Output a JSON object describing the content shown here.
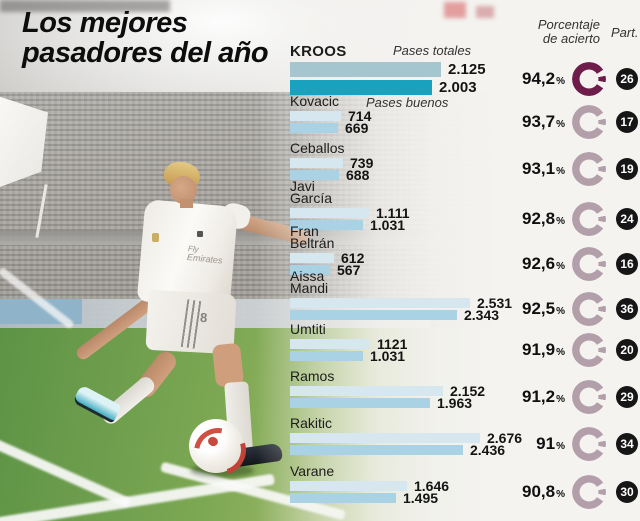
{
  "title": "Los mejores\npasadores del año",
  "labels": {
    "pases_totales": "Pases totales",
    "pases_buenos": "Pases buenos",
    "porcentaje_1": "Porcentaje",
    "porcentaje_2": "de acierto",
    "part": "Part.",
    "percent_sign": "%"
  },
  "colors": {
    "bar_total": "#d6e7f0",
    "bar_good": "#a9d3e4",
    "bar_total_highlight": "#a6c6cf",
    "bar_good_highlight": "#18a2bd",
    "donut": "#b29fa9",
    "donut_highlight": "#6e1d4b",
    "badge_bg": "#161616"
  },
  "chart_data": {
    "type": "bar",
    "orientation": "horizontal",
    "series_labels": [
      "Pases totales",
      "Pases buenos"
    ],
    "players": [
      {
        "name": "KROOS",
        "pases_totales": "2.125",
        "pases_buenos": "2.003",
        "porcentaje": "94,2",
        "partidos": "26",
        "highlight": true
      },
      {
        "name": "Kovacic",
        "pases_totales": "714",
        "pases_buenos": "669",
        "porcentaje": "93,7",
        "partidos": "17",
        "highlight": false
      },
      {
        "name": "Ceballos",
        "pases_totales": "739",
        "pases_buenos": "688",
        "porcentaje": "93,1",
        "partidos": "19",
        "highlight": false
      },
      {
        "name": "Javi\nGarcía",
        "pases_totales": "1.111",
        "pases_buenos": "1.031",
        "porcentaje": "92,8",
        "partidos": "24",
        "highlight": false
      },
      {
        "name": "Fran\nBeltrán",
        "pases_totales": "612",
        "pases_buenos": "567",
        "porcentaje": "92,6",
        "partidos": "16",
        "highlight": false
      },
      {
        "name": "Aissa\nMandi",
        "pases_totales": "2.531",
        "pases_buenos": "2.343",
        "porcentaje": "92,5",
        "partidos": "36",
        "highlight": false
      },
      {
        "name": "Umtiti",
        "pases_totales": "1121",
        "pases_buenos": "1.031",
        "porcentaje": "91,9",
        "partidos": "20",
        "highlight": false
      },
      {
        "name": "Ramos",
        "pases_totales": "2.152",
        "pases_buenos": "1.963",
        "porcentaje": "91,2",
        "partidos": "29",
        "highlight": false
      },
      {
        "name": "Rakitic",
        "pases_totales": "2.676",
        "pases_buenos": "2.436",
        "porcentaje": "91",
        "partidos": "34",
        "highlight": false
      },
      {
        "name": "Varane",
        "pases_totales": "1.646",
        "pases_buenos": "1.495",
        "porcentaje": "90,8",
        "partidos": "30",
        "highlight": false
      }
    ]
  },
  "photo": {
    "jersey_sponsor_line1": "Fly",
    "jersey_sponsor_line2": "Emirates",
    "shorts_number": "8"
  }
}
